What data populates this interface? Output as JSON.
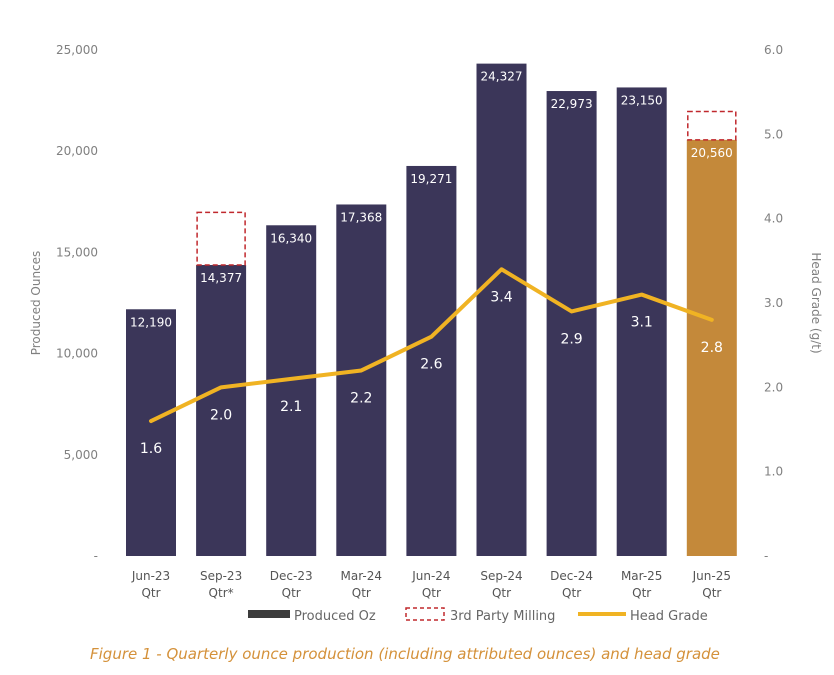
{
  "chart_data": {
    "type": "bar",
    "categories": [
      "Jun-23 Qtr",
      "Sep-23 Qtr*",
      "Dec-23 Qtr",
      "Mar-24 Qtr",
      "Jun-24 Qtr",
      "Sep-24 Qtr",
      "Dec-24 Qtr",
      "Mar-25 Qtr",
      "Jun-25 Qtr"
    ],
    "category_lines": [
      [
        "Jun-23",
        "Qtr"
      ],
      [
        "Sep-23",
        "Qtr*"
      ],
      [
        "Dec-23",
        "Qtr"
      ],
      [
        "Mar-24",
        "Qtr"
      ],
      [
        "Jun-24",
        "Qtr"
      ],
      [
        "Sep-24",
        "Qtr"
      ],
      [
        "Dec-24",
        "Qtr"
      ],
      [
        "Mar-25",
        "Qtr"
      ],
      [
        "Jun-25",
        "Qtr"
      ]
    ],
    "series": [
      {
        "name": "Produced Oz",
        "type": "bar",
        "axis": "left",
        "values": [
          12190,
          14377,
          16340,
          17368,
          19271,
          24327,
          22973,
          23150,
          20560
        ],
        "labels": [
          "12,190",
          "14,377",
          "16,340",
          "17,368",
          "19,271",
          "24,327",
          "22,973",
          "23,150",
          "20,560"
        ],
        "highlight_index": 8
      },
      {
        "name": "3rd Party Milling",
        "type": "bar-stacked-dashed",
        "axis": "left",
        "values": [
          0,
          2600,
          0,
          0,
          0,
          0,
          0,
          0,
          1400
        ]
      },
      {
        "name": "Head Grade",
        "type": "line",
        "axis": "right",
        "values": [
          1.6,
          2.0,
          2.1,
          2.2,
          2.6,
          3.4,
          2.9,
          3.1,
          2.8
        ],
        "labels": [
          "1.6",
          "2.0",
          "2.1",
          "2.2",
          "2.6",
          "3.4",
          "2.9",
          "3.1",
          "2.8"
        ]
      }
    ],
    "y_left": {
      "label": "Produced Ounces",
      "ylim": [
        0,
        25000
      ],
      "ticks": [
        0,
        5000,
        10000,
        15000,
        20000,
        25000
      ],
      "tick_labels": [
        "-",
        "5,000",
        "10,000",
        "15,000",
        "20,000",
        "25,000"
      ]
    },
    "y_right": {
      "label": "Head Grade (g/t)",
      "ylim": [
        0,
        6
      ],
      "ticks": [
        0,
        1,
        2,
        3,
        4,
        5,
        6
      ],
      "tick_labels": [
        "-",
        "1.0",
        "2.0",
        "3.0",
        "4.0",
        "5.0",
        "6.0"
      ]
    },
    "grid": false,
    "legend": [
      "Produced Oz",
      "3rd Party Milling",
      "Head Grade"
    ],
    "legend_position": "bottom",
    "caption": "Figure 1 -  Quarterly ounce production (including attributed ounces) and head grade",
    "colors": {
      "bar": "#3b3659",
      "bar_highlight": "#c4893a",
      "line": "#f0b323",
      "dashed": "#c0282d",
      "legend_bar": "#3c3c3c",
      "caption": "#d4913a"
    }
  }
}
